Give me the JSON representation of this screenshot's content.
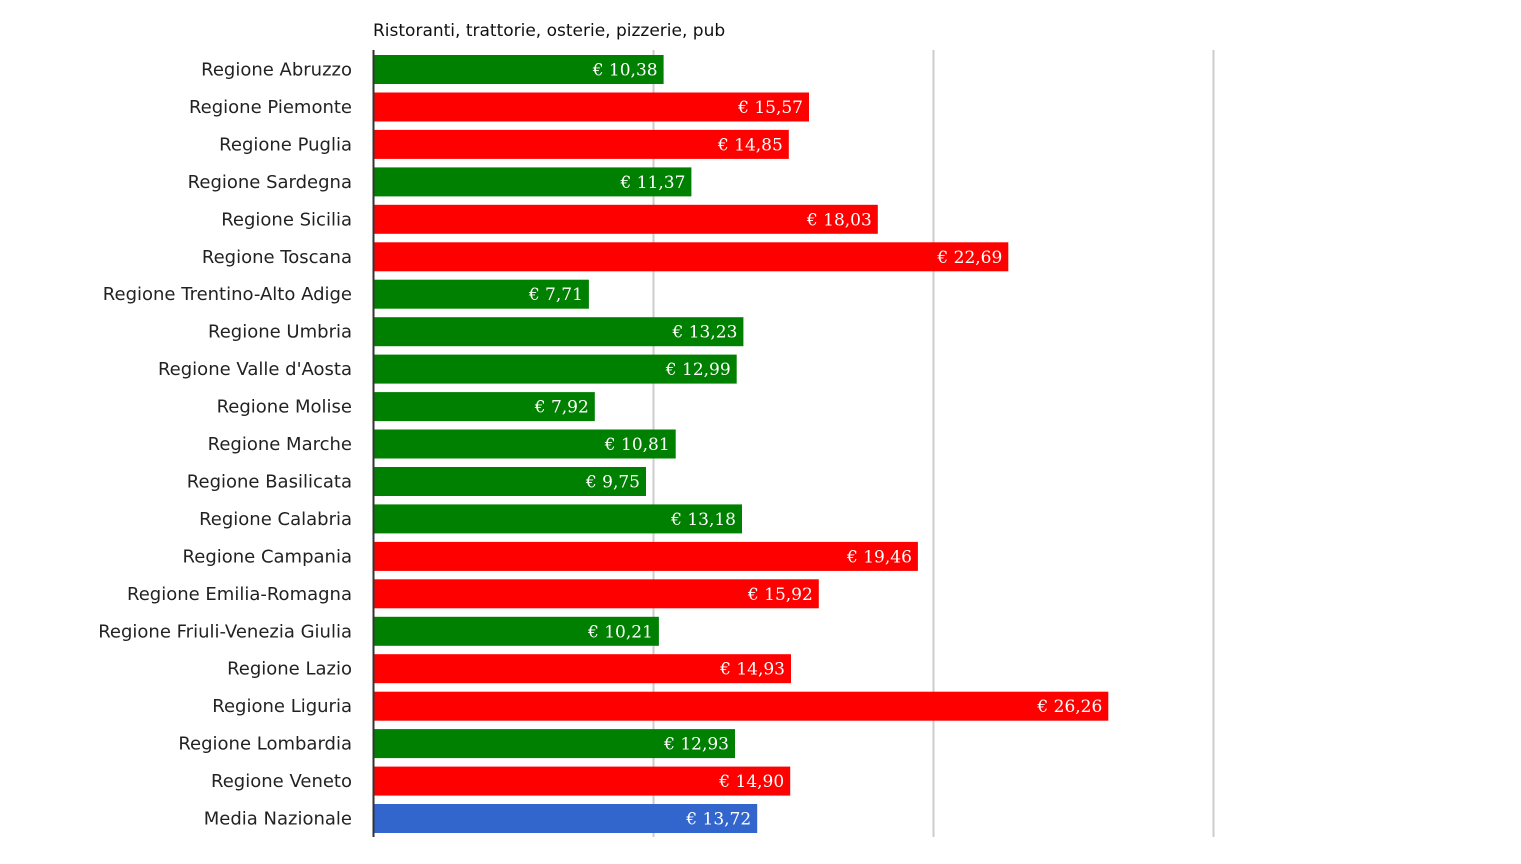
{
  "chart_data": {
    "type": "bar",
    "orientation": "horizontal",
    "title": "Ristoranti, trattorie, osterie, pizzerie, pub",
    "xlabel": "",
    "ylabel": "",
    "xlim": [
      0,
      30
    ],
    "grid": true,
    "legend": "none",
    "value_prefix": "€ ",
    "categories": [
      "Regione Abruzzo",
      "Regione Piemonte",
      "Regione Puglia",
      "Regione Sardegna",
      "Regione Sicilia",
      "Regione Toscana",
      "Regione Trentino-Alto Adige",
      "Regione Umbria",
      "Regione Valle d'Aosta",
      "Regione Molise",
      "Regione Marche",
      "Regione Basilicata",
      "Regione Calabria",
      "Regione Campania",
      "Regione Emilia-Romagna",
      "Regione Friuli-Venezia Giulia",
      "Regione Lazio",
      "Regione Liguria",
      "Regione Lombardia",
      "Regione Veneto",
      "Media Nazionale"
    ],
    "values": [
      10.38,
      15.57,
      14.85,
      11.37,
      18.03,
      22.69,
      7.71,
      13.23,
      12.99,
      7.92,
      10.81,
      9.75,
      13.18,
      19.46,
      15.92,
      10.21,
      14.93,
      26.26,
      12.93,
      14.9,
      13.72
    ],
    "value_labels": [
      "€ 10,38",
      "€ 15,57",
      "€ 14,85",
      "€ 11,37",
      "€ 18,03",
      "€ 22,69",
      "€ 7,71",
      "€ 13,23",
      "€ 12,99",
      "€ 7,92",
      "€ 10,81",
      "€ 9,75",
      "€ 13,18",
      "€ 19,46",
      "€ 15,92",
      "€ 10,21",
      "€ 14,93",
      "€ 26,26",
      "€ 12,93",
      "€ 14,90",
      "€ 13,72"
    ],
    "bar_colors": [
      "#008000",
      "#ff0000",
      "#ff0000",
      "#008000",
      "#ff0000",
      "#ff0000",
      "#008000",
      "#008000",
      "#008000",
      "#008000",
      "#008000",
      "#008000",
      "#008000",
      "#ff0000",
      "#ff0000",
      "#008000",
      "#ff0000",
      "#ff0000",
      "#008000",
      "#ff0000",
      "#3366cc"
    ],
    "colors": {
      "below_average": "#008000",
      "above_average": "#ff0000",
      "average": "#3366cc",
      "gridline": "#cccccc",
      "axis": "#333333"
    }
  }
}
